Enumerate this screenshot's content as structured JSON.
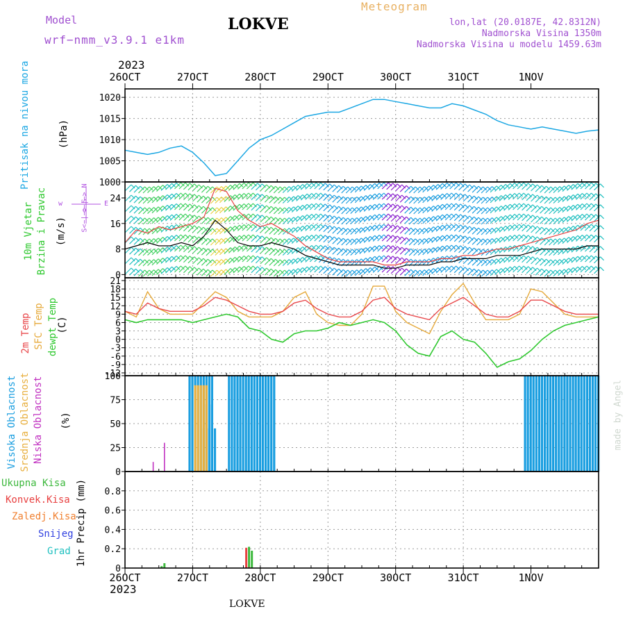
{
  "header": {
    "model_label": "Model",
    "model_name": "wrf−nmm_v3.9.1  e1km",
    "station": "LOKVE",
    "product": "Meteogram",
    "coords": "lon,lat (20.0187E, 42.8312N)",
    "elevation": "Nadmorska Visina 1350m",
    "model_elevation": "Nadmorska Visina u modelu 1459.63m",
    "footer_station": "LOKVE",
    "credit": "made by Angel"
  },
  "time_axis": {
    "top_year": "2023",
    "bottom_year": "2023",
    "ticks": [
      "26OCT",
      "27OCT",
      "28OCT",
      "29OCT",
      "30OCT",
      "31OCT",
      "1NOV"
    ]
  },
  "panels": {
    "pressure": {
      "title": "Pritisak na nivou mora",
      "unit": "(hPa)"
    },
    "wind": {
      "title_1": "10m Vjetar",
      "title_2": "Brzina i Pravac",
      "unit": "(m/s)",
      "compass_w": "w",
      "compass_e": "E",
      "compass_n": "<−|−> N",
      "compass_s": "S<−|−> S"
    },
    "temp": {
      "l1": "2m Temp",
      "l2": "SFC Temp",
      "l3": "dewpt Temp",
      "unit": "(C)"
    },
    "cloud": {
      "l1": "Visoka Oblacnost",
      "l2": "Srednja Oblacnost",
      "l3": "Niska Oblacnost",
      "unit": "(%)"
    },
    "precip": {
      "l1": "Ukupna Kisa",
      "l2": "Konvek.Kisa",
      "l3": "Zaledj.Kisa",
      "l4": "Snijeg",
      "l5": "Grad",
      "unit": "1hr Precip (mm)"
    }
  },
  "colors": {
    "pressure": "#1ba7e3",
    "temp2m": "#e8474a",
    "sfc": "#e6a93a",
    "dewpt": "#2ec82e",
    "high_cloud": "#1a9ee0",
    "mid_cloud": "#e8b040",
    "low_cloud": "#c030c0",
    "total_rain": "#3cb83c",
    "conv_rain": "#e84040",
    "freeze_rain": "#f08030",
    "snow": "#3040e0",
    "hail": "#20c0c0",
    "model_text": "#a050d0",
    "meteogram_text": "#e8b060"
  },
  "chart_data": [
    {
      "type": "line",
      "title": "Pritisak na nivou mora",
      "ylabel": "(hPa)",
      "ylim": [
        1000,
        1022
      ],
      "yticks": [
        1000,
        1005,
        1010,
        1015,
        1020
      ],
      "x_hours": [
        0,
        4,
        8,
        12,
        16,
        20,
        24,
        28,
        32,
        36,
        40,
        44,
        48,
        52,
        56,
        60,
        64,
        68,
        72,
        76,
        80,
        84,
        88,
        92,
        96,
        100,
        104,
        108,
        112,
        116,
        120,
        124,
        128,
        132,
        136,
        140,
        144,
        148,
        152,
        156,
        160,
        164,
        168
      ],
      "series": [
        {
          "values": [
            1007.5,
            1007.0,
            1006.5,
            1007.0,
            1008.0,
            1008.5,
            1007.0,
            1004.5,
            1001.5,
            1002.0,
            1005.0,
            1008.0,
            1010.0,
            1011.0,
            1012.5,
            1014.0,
            1015.5,
            1016.0,
            1016.5,
            1016.5,
            1017.5,
            1018.5,
            1019.5,
            1019.5,
            1019.0,
            1018.5,
            1018.0,
            1017.5,
            1017.5,
            1018.5,
            1018.0,
            1017.0,
            1016.0,
            1014.5,
            1013.5,
            1013.0,
            1012.5,
            1013.0,
            1012.5,
            1012.0,
            1011.5,
            1012.0,
            1012.3
          ]
        }
      ]
    },
    {
      "type": "line",
      "title": "10m Vjetar Brzina i Pravac",
      "ylabel": "(m/s)",
      "ylim": [
        -1,
        29
      ],
      "yticks": [
        0,
        8,
        16,
        24
      ],
      "x_hours": [
        0,
        4,
        8,
        12,
        16,
        20,
        24,
        28,
        32,
        36,
        40,
        44,
        48,
        52,
        56,
        60,
        64,
        68,
        72,
        76,
        80,
        84,
        88,
        92,
        96,
        100,
        104,
        108,
        112,
        116,
        120,
        124,
        128,
        132,
        136,
        140,
        144,
        148,
        152,
        156,
        160,
        164,
        168
      ],
      "series": [
        {
          "name": "speed",
          "values": [
            8,
            9,
            10,
            9,
            9,
            10,
            9,
            12,
            17,
            14,
            10,
            9,
            9,
            10,
            9,
            8,
            6,
            5,
            4,
            3,
            3,
            3,
            3,
            2,
            2,
            3,
            3,
            3,
            4,
            4,
            5,
            5,
            5,
            6,
            6,
            6,
            7,
            8,
            8,
            8,
            8,
            9,
            9
          ]
        },
        {
          "name": "gust",
          "values": [
            10,
            14,
            13,
            15,
            14,
            15,
            16,
            18,
            27,
            26,
            20,
            17,
            15,
            16,
            14,
            12,
            9,
            7,
            5,
            4,
            4,
            4,
            4,
            3,
            3,
            4,
            4,
            4,
            5,
            5,
            6,
            6,
            7,
            8,
            8,
            9,
            10,
            11,
            12,
            13,
            14,
            16,
            17
          ]
        }
      ]
    },
    {
      "type": "line",
      "title": "",
      "ylabel": "(C)",
      "ylim": [
        -13,
        22
      ],
      "yticks": [
        -12,
        -9,
        -6,
        -3,
        0,
        3,
        6,
        9,
        12,
        15,
        18,
        21
      ],
      "x_hours": [
        0,
        4,
        8,
        12,
        16,
        20,
        24,
        28,
        32,
        36,
        40,
        44,
        48,
        52,
        56,
        60,
        64,
        68,
        72,
        76,
        80,
        84,
        88,
        92,
        96,
        100,
        104,
        108,
        112,
        116,
        120,
        124,
        128,
        132,
        136,
        140,
        144,
        148,
        152,
        156,
        160,
        164,
        168
      ],
      "series": [
        {
          "name": "2m Temp",
          "values": [
            10,
            9,
            13,
            11,
            10,
            10,
            10,
            12,
            15,
            14,
            12,
            10,
            9,
            9,
            10,
            13,
            14,
            11,
            9,
            8,
            8,
            10,
            14,
            15,
            11,
            9,
            8,
            7,
            11,
            13,
            15,
            12,
            9,
            8,
            8,
            10,
            14,
            14,
            12,
            10,
            9,
            9,
            9
          ]
        },
        {
          "name": "SFC Temp",
          "values": [
            10,
            8,
            17,
            11,
            9,
            9,
            9,
            13,
            17,
            15,
            10,
            8,
            8,
            8,
            10,
            15,
            17,
            9,
            6,
            5,
            5,
            9,
            19,
            19,
            10,
            6,
            4,
            2,
            10,
            16,
            20,
            13,
            7,
            7,
            7,
            9,
            18,
            17,
            13,
            9,
            8,
            8,
            8
          ]
        },
        {
          "name": "dewpt Temp",
          "values": [
            7,
            6,
            7,
            7,
            7,
            7,
            6,
            7,
            8,
            9,
            8,
            4,
            3,
            0,
            -1,
            2,
            3,
            3,
            4,
            6,
            5,
            6,
            7,
            6,
            3,
            -2,
            -5,
            -6,
            1,
            3,
            0,
            -1,
            -5,
            -10,
            -8,
            -7,
            -4,
            0,
            3,
            5,
            6,
            7,
            8
          ]
        }
      ]
    },
    {
      "type": "bar",
      "title": "",
      "ylabel": "(%)",
      "ylim": [
        0,
        100
      ],
      "yticks": [
        0,
        25,
        50,
        75,
        100
      ],
      "series": [
        {
          "name": "Visoka Oblacnost",
          "segments": [
            {
              "from_hour": 23,
              "to_hour": 31,
              "value": 100
            },
            {
              "from_hour": 28,
              "to_hour": 32,
              "value": 70
            },
            {
              "from_hour": 37,
              "to_hour": 53,
              "value": 100
            },
            {
              "from_hour": 142,
              "to_hour": 168,
              "value": 100
            }
          ]
        },
        {
          "name": "Srednja Oblacnost",
          "segments": [
            {
              "from_hour": 25,
              "to_hour": 29,
              "value": 90
            }
          ]
        },
        {
          "name": "Niska Oblacnost",
          "points": [
            {
              "hour": 10,
              "value": 10
            },
            {
              "hour": 14,
              "value": 30
            }
          ]
        }
      ]
    },
    {
      "type": "bar",
      "title": "",
      "ylabel": "1hr Precip (mm)",
      "ylim": [
        0,
        1.0
      ],
      "yticks": [
        0,
        0.2,
        0.4,
        0.6,
        0.8
      ],
      "series": [
        {
          "name": "Ukupna Kisa",
          "points": [
            {
              "hour": 13,
              "value": 0.02
            },
            {
              "hour": 14,
              "value": 0.05
            },
            {
              "hour": 44,
              "value": 0.22
            },
            {
              "hour": 45,
              "value": 0.18
            }
          ]
        },
        {
          "name": "Konvek.Kisa",
          "points": [
            {
              "hour": 43,
              "value": 0.21
            },
            {
              "hour": 44,
              "value": 0.01
            }
          ]
        },
        {
          "name": "Zaledj.Kisa",
          "points": []
        },
        {
          "name": "Snijeg",
          "points": []
        },
        {
          "name": "Grad",
          "points": []
        }
      ]
    }
  ]
}
